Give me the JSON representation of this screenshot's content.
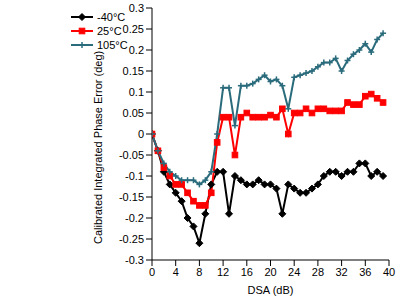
{
  "chart_data": {
    "type": "line",
    "x_label": "DSA (dB)",
    "y_label": "Calibrated Integrated Phase Error (deg)",
    "x": [
      0,
      1,
      2,
      3,
      4,
      5,
      6,
      7,
      8,
      9,
      10,
      11,
      12,
      13,
      14,
      15,
      16,
      17,
      18,
      19,
      20,
      21,
      22,
      23,
      24,
      25,
      26,
      27,
      28,
      29,
      30,
      31,
      32,
      33,
      34,
      35,
      36,
      37,
      38,
      39
    ],
    "xlim": [
      0,
      40
    ],
    "xticks": [
      0,
      4,
      8,
      12,
      16,
      20,
      24,
      28,
      32,
      36,
      40
    ],
    "ylim": [
      -0.3,
      0.3
    ],
    "yticks": [
      -0.3,
      -0.25,
      -0.2,
      -0.15,
      -0.1,
      -0.05,
      0,
      0.05,
      0.1,
      0.15,
      0.2,
      0.25,
      0.3
    ],
    "grid": false,
    "legend": "upper left",
    "series": [
      {
        "name": "-40°C",
        "color": "#000000",
        "marker": "diamond",
        "values": [
          0,
          -0.04,
          -0.09,
          -0.12,
          -0.14,
          -0.16,
          -0.2,
          -0.22,
          -0.26,
          -0.19,
          -0.12,
          -0.09,
          -0.09,
          -0.19,
          -0.1,
          -0.11,
          -0.12,
          -0.12,
          -0.11,
          -0.12,
          -0.12,
          -0.13,
          -0.19,
          -0.12,
          -0.13,
          -0.14,
          -0.14,
          -0.13,
          -0.12,
          -0.1,
          -0.09,
          -0.09,
          -0.1,
          -0.09,
          -0.09,
          -0.07,
          -0.07,
          -0.1,
          -0.09,
          -0.1
        ]
      },
      {
        "name": "25°C",
        "color": "#ff0000",
        "marker": "square",
        "values": [
          0,
          -0.04,
          -0.08,
          -0.1,
          -0.12,
          -0.12,
          -0.14,
          -0.16,
          -0.17,
          -0.17,
          -0.14,
          -0.02,
          0.04,
          0.04,
          -0.05,
          0.04,
          0.05,
          0.04,
          0.04,
          0.04,
          0.045,
          0.04,
          0.06,
          0,
          0.05,
          0.05,
          0.06,
          0.05,
          0.06,
          0.06,
          0.055,
          0.055,
          0.055,
          0.075,
          0.07,
          0.07,
          0.09,
          0.095,
          0.085,
          0.075
        ]
      },
      {
        "name": "105°C",
        "color": "#2a6b7c",
        "marker": "plus",
        "values": [
          0,
          -0.04,
          -0.07,
          -0.09,
          -0.1,
          -0.11,
          -0.11,
          -0.11,
          -0.12,
          -0.11,
          -0.09,
          0,
          0.11,
          0.11,
          0.02,
          0.115,
          0.115,
          0.12,
          0.13,
          0.14,
          0.125,
          0.13,
          0.115,
          0.06,
          0.135,
          0.14,
          0.145,
          0.15,
          0.16,
          0.17,
          0.17,
          0.18,
          0.15,
          0.175,
          0.19,
          0.2,
          0.215,
          0.195,
          0.225,
          0.24
        ]
      }
    ]
  }
}
